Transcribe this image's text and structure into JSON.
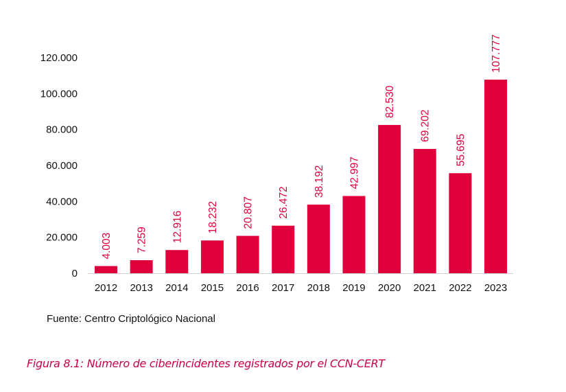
{
  "chart_data": {
    "type": "bar",
    "title": "",
    "xlabel": "",
    "ylabel": "",
    "categories": [
      "2012",
      "2013",
      "2014",
      "2015",
      "2016",
      "2017",
      "2018",
      "2019",
      "2020",
      "2021",
      "2022",
      "2023"
    ],
    "values": [
      4003,
      7259,
      12916,
      18232,
      20807,
      26472,
      38192,
      42997,
      82530,
      69202,
      55695,
      107777
    ],
    "data_labels": [
      "4.003",
      "7.259",
      "12.916",
      "18.232",
      "20.807",
      "26.472",
      "38.192",
      "42.997",
      "82.530",
      "69.202",
      "55.695",
      "107.777"
    ],
    "ylim": [
      0,
      120000
    ],
    "yticks": [
      0,
      20000,
      40000,
      60000,
      80000,
      100000,
      120000
    ],
    "ytick_labels": [
      "0",
      "20.000",
      "40.000",
      "60.000",
      "80.000",
      "100.000",
      "120.000"
    ],
    "grid": false,
    "legend": "none",
    "bar_color": "#e0003c",
    "label_color": "#e0003c"
  },
  "source": "Fuente: Centro Criptológico Nacional",
  "caption": "Figura 8.1: Número de ciberincidentes registrados por el CCN-CERT",
  "caption_color": "#c8004a"
}
